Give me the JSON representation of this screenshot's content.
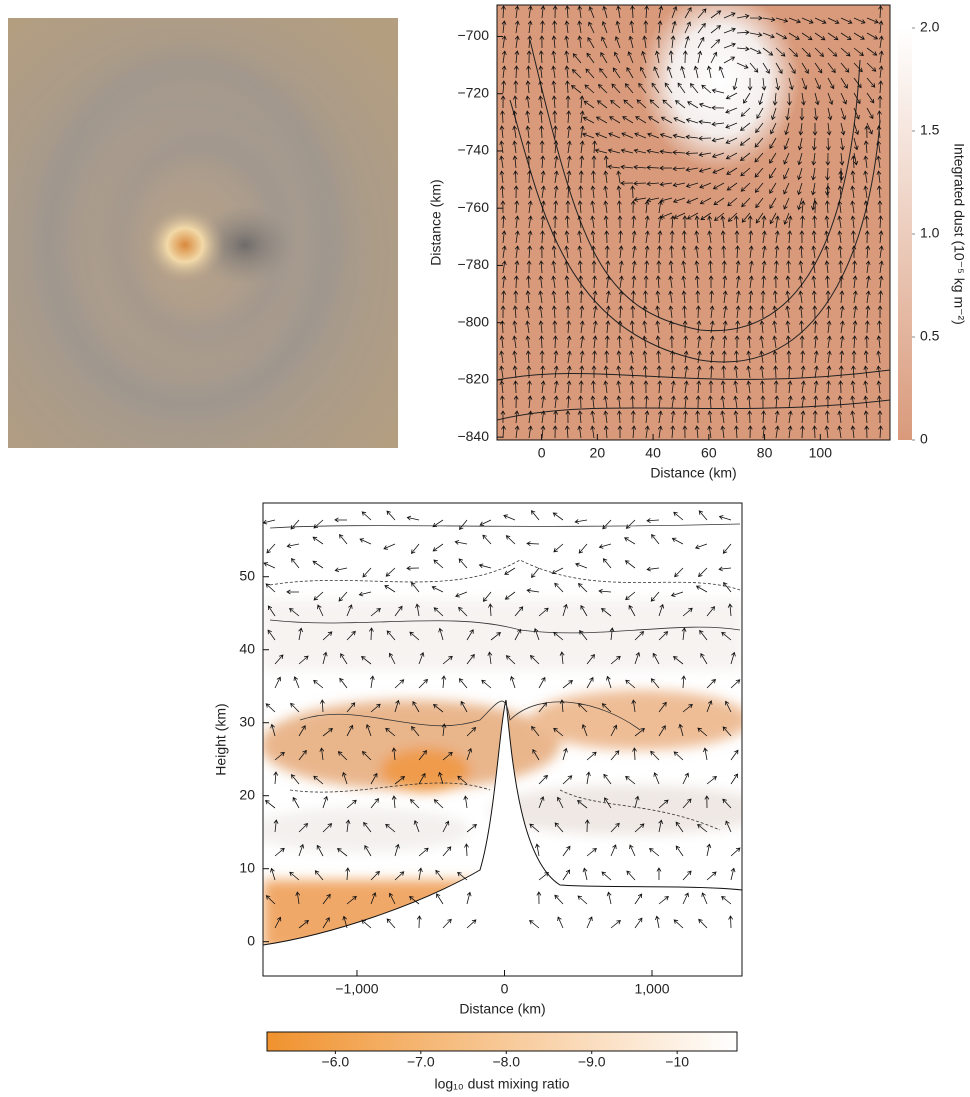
{
  "chart_data": [
    {
      "type": "quiver",
      "xlabel": "Distance (km)",
      "ylabel": "Distance (km)",
      "xlim": [
        -16,
        125
      ],
      "ylim": [
        -841,
        -689
      ],
      "xticks": [
        0,
        20,
        40,
        60,
        80,
        100
      ],
      "yticks": [
        {
          "value": -700,
          "label": "−700"
        },
        {
          "value": -720,
          "label": "−720"
        },
        {
          "value": -740,
          "label": "−740"
        },
        {
          "value": -760,
          "label": "−760"
        },
        {
          "value": -780,
          "label": "−780"
        },
        {
          "value": -800,
          "label": "−800"
        },
        {
          "value": -820,
          "label": "−820"
        },
        {
          "value": -840,
          "label": "−840"
        }
      ],
      "colorbar": {
        "label": "Integrated dust (10⁻⁵ kg m⁻²)",
        "lim": [
          0,
          2
        ],
        "colors": [
          "#d99a7b",
          "#ffffff"
        ],
        "ticks": [
          {
            "value": 2,
            "label": "2.0"
          },
          1.5,
          {
            "value": 1,
            "label": "1.0"
          },
          0.5,
          0
        ]
      }
    },
    {
      "type": "contour",
      "xlabel": "Distance (km)",
      "ylabel": "Height (km)",
      "xlim": [
        -1637,
        1610
      ],
      "ylim": [
        -4.7,
        60.1
      ],
      "xticks": [
        {
          "value": -1000,
          "label": "−1,000"
        },
        0,
        {
          "value": 1000,
          "label": "1,000"
        }
      ],
      "yticks": [
        0,
        10,
        20,
        30,
        40,
        50
      ],
      "colorbar": {
        "label": "log₁₀ dust mixing ratio",
        "lim": [
          -5.2,
          -10.7
        ],
        "colors": [
          "#f0922e",
          "#ffffff"
        ],
        "ticks": [
          {
            "value": -6,
            "label": "−6.0"
          },
          {
            "value": -7,
            "label": "−7.0"
          },
          {
            "value": -8,
            "label": "−8.0"
          },
          {
            "value": -9,
            "label": "−9.0"
          },
          {
            "value": -10,
            "label": "−10"
          }
        ]
      }
    }
  ]
}
